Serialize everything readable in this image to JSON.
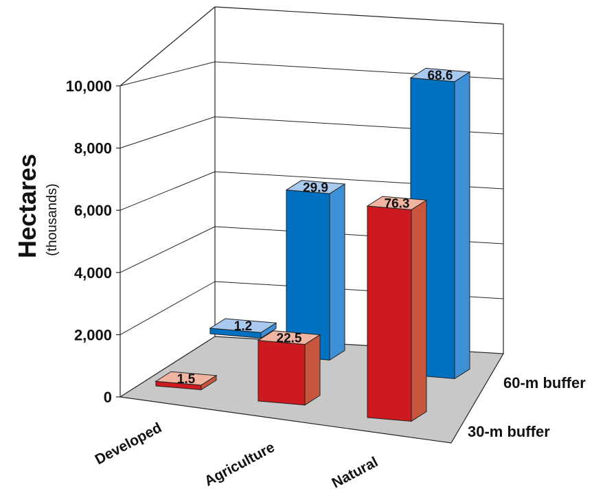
{
  "chart_data": {
    "type": "bar",
    "ylabel": "Hectares",
    "ylabel_sub": "(thousands)",
    "ylim": [
      0,
      10000
    ],
    "yticks": [
      0,
      2000,
      4000,
      6000,
      8000,
      10000
    ],
    "ytick_labels": [
      "0",
      "2,000",
      "4,000",
      "6,000",
      "8,000",
      "10,000"
    ],
    "grid": true,
    "categories": [
      "Developed",
      "Agriculture",
      "Natural"
    ],
    "series": [
      {
        "name": "60-m buffer",
        "values": [
          150,
          5350,
          9550
        ],
        "data_labels": [
          "1.2",
          "29.9",
          "68.6"
        ],
        "front_color": "#0070c0",
        "side_color": "#3d8fd6",
        "top_color": "#a9c9ee"
      },
      {
        "name": "30-m buffer",
        "values": [
          150,
          1950,
          6800
        ],
        "data_labels": [
          "1.5",
          "22.5",
          "76.3"
        ],
        "front_color": "#cc1a1f",
        "side_color": "#c8553d",
        "top_color": "#f0b4a2"
      }
    ],
    "floor_color": "#c8c8c8"
  }
}
